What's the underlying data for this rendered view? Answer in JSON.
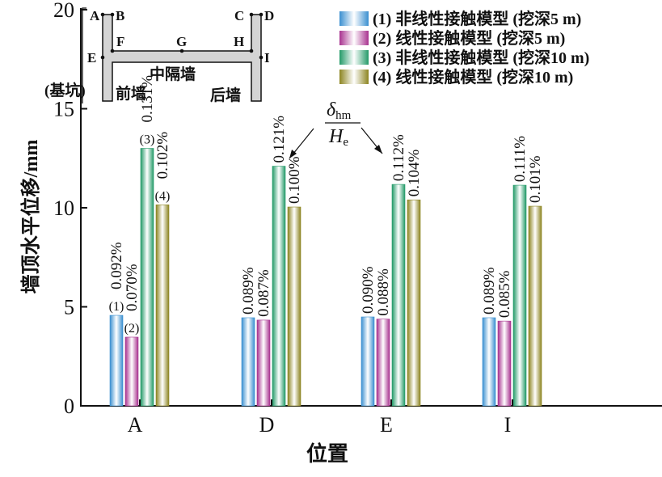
{
  "chart_data": {
    "type": "bar",
    "title": "",
    "xlabel": "位置",
    "ylabel": "墙顶水平位移/mm",
    "ylim": [
      0,
      20
    ],
    "yticks": [
      "0",
      "5",
      "10",
      "15",
      "20"
    ],
    "grid": false,
    "legend_position": "top-right",
    "categories": [
      "A",
      "D",
      "E",
      "I"
    ],
    "series": [
      {
        "name": "(1) 非线性接触模型 (挖深5 m)",
        "tag": "(1)",
        "color": "#3a8fd0",
        "values": [
          4.57,
          4.45,
          4.49,
          4.45
        ],
        "labels": [
          "0.092%",
          "0.089%",
          "0.090%",
          "0.089%"
        ]
      },
      {
        "name": "(2) 线性接触模型 (挖深5 m)",
        "tag": "(2)",
        "color": "#a8328f",
        "values": [
          3.47,
          4.33,
          4.38,
          4.28
        ],
        "labels": [
          "0.070%",
          "0.087%",
          "0.088%",
          "0.085%"
        ]
      },
      {
        "name": "(3) 非线性接触模型 (挖深10 m)",
        "tag": "(3)",
        "color": "#239a68",
        "values": [
          13.0,
          12.1,
          11.18,
          11.14
        ],
        "labels": [
          "0.131%",
          "0.121%",
          "0.112%",
          "0.111%"
        ]
      },
      {
        "name": "(4) 线性接触模型 (挖深10 m)",
        "tag": "(4)",
        "color": "#8c8420",
        "values": [
          10.15,
          10.04,
          10.4,
          10.08
        ],
        "labels": [
          "0.102%",
          "0.100%",
          "0.104%",
          "0.101%"
        ]
      }
    ],
    "annotation": {
      "numerator": "δ",
      "numerator_sub": "hm",
      "denominator": "H",
      "denominator_sub": "e"
    }
  },
  "inset": {
    "points": [
      "A",
      "B",
      "C",
      "D",
      "E",
      "F",
      "G",
      "H",
      "I"
    ],
    "middle_wall": "中隔墙",
    "front_wall": "前墙",
    "back_wall": "后墙",
    "pit": "(基坑)"
  }
}
